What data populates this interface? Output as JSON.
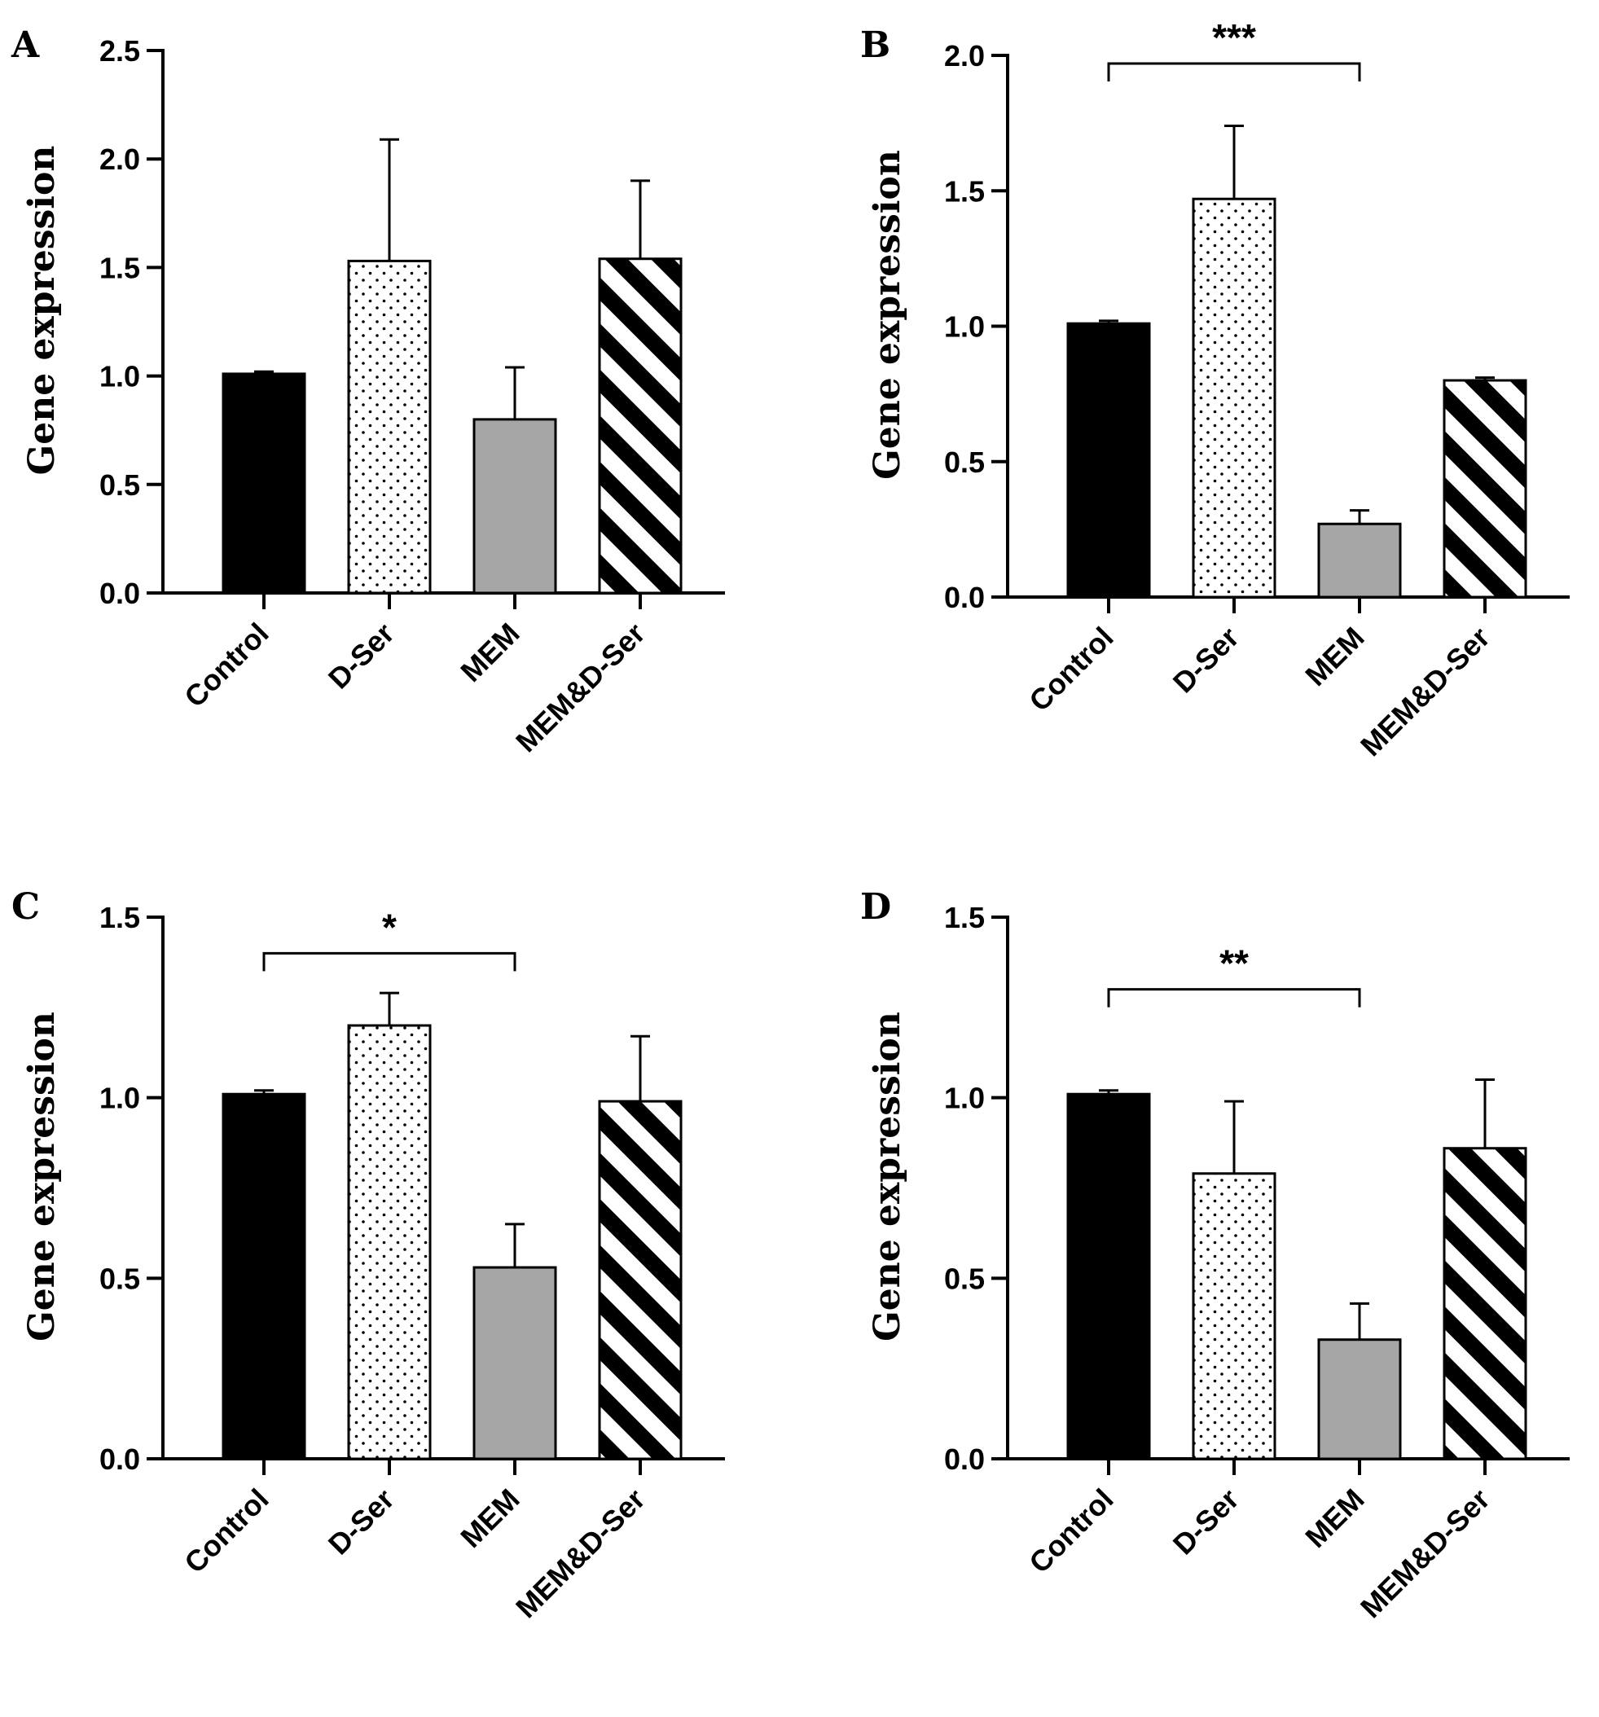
{
  "figure": {
    "fills": {
      "Control": "#000000",
      "D-Ser": "dots",
      "MEM": "#a6a6a6",
      "MEM&D-Ser": "stripes"
    }
  },
  "chart_data": [
    {
      "panel": "A",
      "type": "bar",
      "categories": [
        "Control",
        "D-Ser",
        "MEM",
        "MEM&D-Ser"
      ],
      "values": [
        1.01,
        1.53,
        0.8,
        1.54
      ],
      "errors": [
        0.01,
        0.56,
        0.24,
        0.36
      ],
      "ylabel": "Gene expression",
      "ylim": [
        0,
        2.5
      ],
      "yticks": [
        "0.0",
        "0.5",
        "1.0",
        "1.5",
        "2.0",
        "2.5"
      ],
      "significance": null
    },
    {
      "panel": "B",
      "type": "bar",
      "categories": [
        "Control",
        "D-Ser",
        "MEM",
        "MEM&D-Ser"
      ],
      "values": [
        1.01,
        1.47,
        0.27,
        0.8
      ],
      "errors": [
        0.01,
        0.27,
        0.05,
        0.01
      ],
      "ylabel": "Gene expression",
      "ylim": [
        0,
        2.0
      ],
      "yticks": [
        "0.0",
        "0.5",
        "1.0",
        "1.5",
        "2.0"
      ],
      "significance": {
        "from": 0,
        "to": 2,
        "y": 1.97,
        "label": "***"
      }
    },
    {
      "panel": "C",
      "type": "bar",
      "categories": [
        "Control",
        "D-Ser",
        "MEM",
        "MEM&D-Ser"
      ],
      "values": [
        1.01,
        1.2,
        0.53,
        0.99
      ],
      "errors": [
        0.01,
        0.09,
        0.12,
        0.18
      ],
      "ylabel": "Gene expression",
      "ylim": [
        0,
        1.5
      ],
      "yticks": [
        "0.0",
        "0.5",
        "1.0",
        "1.5"
      ],
      "significance": {
        "from": 0,
        "to": 2,
        "y": 1.4,
        "label": "*"
      }
    },
    {
      "panel": "D",
      "type": "bar",
      "categories": [
        "Control",
        "D-Ser",
        "MEM",
        "MEM&D-Ser"
      ],
      "values": [
        1.01,
        0.79,
        0.33,
        0.86
      ],
      "errors": [
        0.01,
        0.2,
        0.1,
        0.19
      ],
      "ylabel": "Gene expression",
      "ylim": [
        0,
        1.5
      ],
      "yticks": [
        "0.0",
        "0.5",
        "1.0",
        "1.5"
      ],
      "significance": {
        "from": 0,
        "to": 2,
        "y": 1.3,
        "label": "**"
      }
    }
  ]
}
